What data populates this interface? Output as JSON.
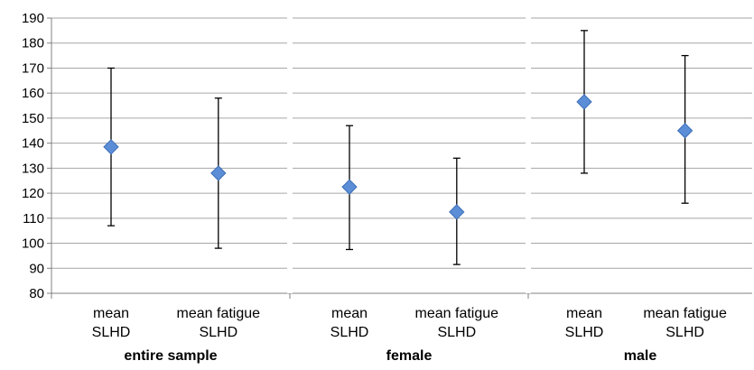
{
  "chart_data": {
    "type": "scatter",
    "title": "",
    "ylabel": "",
    "ylim": [
      80,
      190
    ],
    "yticks": [
      80,
      90,
      100,
      110,
      120,
      130,
      140,
      150,
      160,
      170,
      180,
      190
    ],
    "grid": true,
    "legend": "none",
    "marker": "diamond",
    "colors": {
      "marker": "#5b8ed6",
      "marker_stroke": "#3e6fb8",
      "grid": "#a6a6a6",
      "axis": "#808080",
      "error_bar": "#000000"
    },
    "groups": [
      {
        "name": "entire sample",
        "categories": [
          {
            "line1": "mean",
            "line2": "SLHD",
            "value": 138.5,
            "low": 107,
            "high": 170
          },
          {
            "line1": "mean fatigue",
            "line2": "SLHD",
            "value": 128,
            "low": 98,
            "high": 158
          }
        ]
      },
      {
        "name": "female",
        "categories": [
          {
            "line1": "mean",
            "line2": "SLHD",
            "value": 122.5,
            "low": 97.5,
            "high": 147
          },
          {
            "line1": "mean fatigue",
            "line2": "SLHD",
            "value": 112.5,
            "low": 91.5,
            "high": 134
          }
        ]
      },
      {
        "name": "male",
        "categories": [
          {
            "line1": "mean",
            "line2": "SLHD",
            "value": 156.5,
            "low": 128,
            "high": 185
          },
          {
            "line1": "mean fatigue",
            "line2": "SLHD",
            "value": 145,
            "low": 116,
            "high": 175
          }
        ]
      }
    ]
  }
}
